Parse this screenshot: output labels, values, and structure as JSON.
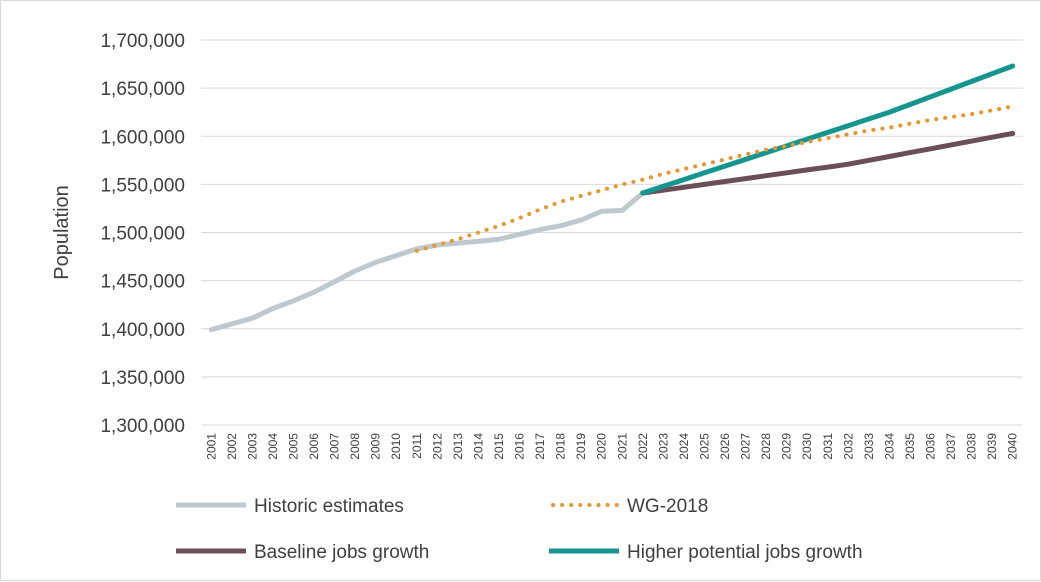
{
  "chart_data": {
    "type": "line",
    "title": "",
    "xlabel": "",
    "ylabel": "Population",
    "ylim": [
      1300000,
      1700000
    ],
    "yticks": [
      1300000,
      1350000,
      1400000,
      1450000,
      1500000,
      1550000,
      1600000,
      1650000,
      1700000
    ],
    "ytick_labels": [
      "1,300,000",
      "1,350,000",
      "1,400,000",
      "1,450,000",
      "1,500,000",
      "1,550,000",
      "1,600,000",
      "1,650,000",
      "1,700,000"
    ],
    "categories": [
      "2001",
      "2002",
      "2003",
      "2004",
      "2005",
      "2006",
      "2007",
      "2008",
      "2009",
      "2010",
      "2011",
      "2012",
      "2013",
      "2014",
      "2015",
      "2016",
      "2017",
      "2018",
      "2019",
      "2020",
      "2021",
      "2022",
      "2023",
      "2024",
      "2025",
      "2026",
      "2027",
      "2028",
      "2029",
      "2030",
      "2031",
      "2032",
      "2033",
      "2034",
      "2035",
      "2036",
      "2037",
      "2038",
      "2039",
      "2040"
    ],
    "grid": true,
    "legend_position": "bottom",
    "series": [
      {
        "name": "Historic estimates",
        "color": "#bfc8cc",
        "style": "solid",
        "x": [
          "2001",
          "2002",
          "2003",
          "2004",
          "2005",
          "2006",
          "2007",
          "2008",
          "2009",
          "2010",
          "2011",
          "2012",
          "2013",
          "2014",
          "2015",
          "2016",
          "2017",
          "2018",
          "2019",
          "2020",
          "2021",
          "2022"
        ],
        "values": [
          1399000,
          1405000,
          1411000,
          1421000,
          1429000,
          1438000,
          1449000,
          1460000,
          1469000,
          1476000,
          1483000,
          1487000,
          1489000,
          1491000,
          1493000,
          1498000,
          1503000,
          1507000,
          1513000,
          1522000,
          1523000,
          1541000
        ]
      },
      {
        "name": "WG-2018",
        "color": "#e8962d",
        "style": "dotted",
        "x": [
          "2011",
          "2012",
          "2013",
          "2014",
          "2015",
          "2016",
          "2017",
          "2018",
          "2019",
          "2020",
          "2021",
          "2022",
          "2023",
          "2024",
          "2025",
          "2026",
          "2027",
          "2028",
          "2029",
          "2030",
          "2031",
          "2032",
          "2033",
          "2034",
          "2035",
          "2036",
          "2037",
          "2038",
          "2039",
          "2040"
        ],
        "values": [
          1481000,
          1487000,
          1493000,
          1500000,
          1507000,
          1515000,
          1524000,
          1532000,
          1538000,
          1544000,
          1550000,
          1555000,
          1561000,
          1566000,
          1571000,
          1576000,
          1581000,
          1586000,
          1590000,
          1594000,
          1598000,
          1602000,
          1606000,
          1609000,
          1613000,
          1617000,
          1620000,
          1623000,
          1627000,
          1631000
        ]
      },
      {
        "name": "Baseline jobs growth",
        "color": "#6b4f56",
        "style": "solid",
        "x": [
          "2022",
          "2023",
          "2024",
          "2025",
          "2026",
          "2027",
          "2028",
          "2029",
          "2030",
          "2031",
          "2032",
          "2033",
          "2034",
          "2035",
          "2036",
          "2037",
          "2038",
          "2039",
          "2040"
        ],
        "values": [
          1541000,
          1544000,
          1547000,
          1550000,
          1553000,
          1556000,
          1559000,
          1562000,
          1565000,
          1568000,
          1571000,
          1575000,
          1579000,
          1583000,
          1587000,
          1591000,
          1595000,
          1599000,
          1603000
        ]
      },
      {
        "name": "Higher potential jobs growth",
        "color": "#14968e",
        "style": "solid",
        "x": [
          "2022",
          "2023",
          "2024",
          "2025",
          "2026",
          "2027",
          "2028",
          "2029",
          "2030",
          "2031",
          "2032",
          "2033",
          "2034",
          "2035",
          "2036",
          "2037",
          "2038",
          "2039",
          "2040"
        ],
        "values": [
          1541000,
          1548000,
          1555000,
          1562000,
          1569000,
          1576000,
          1583000,
          1590000,
          1597000,
          1604000,
          1611000,
          1618000,
          1625000,
          1633000,
          1641000,
          1649000,
          1657000,
          1665000,
          1673000
        ]
      }
    ]
  }
}
